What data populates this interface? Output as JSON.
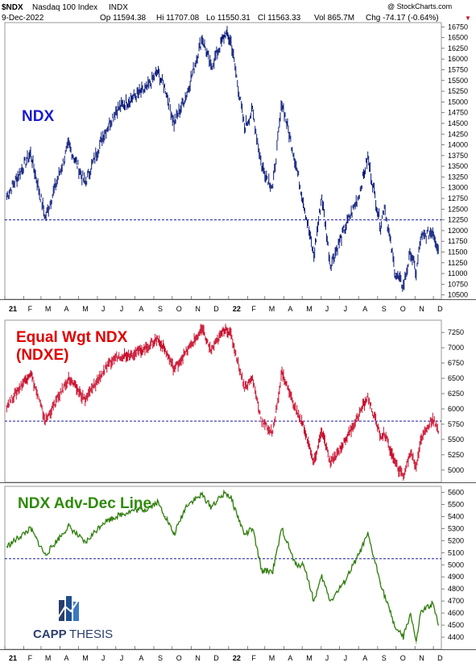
{
  "header": {
    "symbol": "$NDX",
    "name": "Nasdaq 100 Index",
    "exchange": "INDX",
    "date": "9-Dec-2022",
    "op": "Op 11594.38",
    "hi": "Hi 11707.08",
    "lo": "Lo 11550.31",
    "cl": "Cl 11563.33",
    "vol": "Vol 865.7M",
    "chg": "Chg -74.17 (-0.64%)",
    "watermark": "@ StockCharts.com",
    "down_arrow": "▼"
  },
  "logo": {
    "part1": "CAPP",
    "part2": "THESIS"
  },
  "colors": {
    "ndx": "#0a1a7a",
    "ndxe": "#c8102e",
    "adline": "#2e7d0a",
    "dashed": "#1a1aa6",
    "title_ndx": "#1a1ad0",
    "title_ndxe": "#e00000",
    "title_ad": "#2e8b0a",
    "logo_text": "#2a3e6e",
    "logo_icon": "#1f4e91"
  },
  "x_axis": {
    "months": [
      "21",
      "F",
      "M",
      "A",
      "M",
      "J",
      "J",
      "A",
      "S",
      "O",
      "N",
      "D",
      "22",
      "F",
      "M",
      "A",
      "M",
      "J",
      "J",
      "A",
      "S",
      "O",
      "N",
      "D"
    ],
    "bold_labels": [
      "21",
      "22"
    ]
  },
  "chart_data": [
    {
      "type": "line",
      "title": "NDX",
      "ylim": [
        10400,
        16850
      ],
      "y_ticks": [
        10500,
        10750,
        11000,
        11250,
        11500,
        11750,
        12000,
        12250,
        12500,
        12750,
        13000,
        13250,
        13500,
        13750,
        14000,
        14250,
        14500,
        14750,
        15000,
        15250,
        15500,
        15750,
        16000,
        16250,
        16500,
        16750
      ],
      "reference_line": 12250,
      "x": [
        "2021-01-04",
        "2021-02-12",
        "2021-03-08",
        "2021-04-15",
        "2021-05-12",
        "2021-06-10",
        "2021-07-01",
        "2021-07-28",
        "2021-08-20",
        "2021-09-07",
        "2021-09-20",
        "2021-10-04",
        "2021-10-25",
        "2021-11-19",
        "2021-12-03",
        "2021-12-27",
        "2022-01-05",
        "2022-01-27",
        "2022-02-09",
        "2022-02-24",
        "2022-03-14",
        "2022-03-29",
        "2022-04-20",
        "2022-05-04",
        "2022-05-20",
        "2022-06-02",
        "2022-06-16",
        "2022-07-08",
        "2022-08-01",
        "2022-08-16",
        "2022-09-06",
        "2022-09-12",
        "2022-09-30",
        "2022-10-13",
        "2022-10-25",
        "2022-11-03",
        "2022-11-10",
        "2022-11-30",
        "2022-12-09"
      ],
      "series": [
        {
          "values": [
            12800,
            13800,
            12300,
            14000,
            13100,
            14200,
            14800,
            15100,
            15300,
            15700,
            15300,
            14500,
            15200,
            16500,
            15800,
            16600,
            16400,
            14400,
            14800,
            13500,
            13000,
            15000,
            13600,
            12600,
            11400,
            12800,
            11200,
            12000,
            12800,
            13700,
            12100,
            12600,
            11000,
            10700,
            11500,
            11000,
            11800,
            12000,
            11563
          ]
        }
      ]
    },
    {
      "type": "line",
      "title": "Equal Wgt NDX (NDXE)",
      "ylim": [
        4800,
        7450
      ],
      "y_ticks": [
        5000,
        5250,
        5500,
        5750,
        6000,
        6250,
        6500,
        6750,
        7000,
        7250
      ],
      "reference_line": 5800,
      "x": [
        "2021-01-04",
        "2021-02-12",
        "2021-03-08",
        "2021-04-15",
        "2021-05-12",
        "2021-06-10",
        "2021-07-01",
        "2021-07-28",
        "2021-08-20",
        "2021-09-07",
        "2021-09-20",
        "2021-10-04",
        "2021-10-25",
        "2021-11-19",
        "2021-12-03",
        "2021-12-27",
        "2022-01-05",
        "2022-01-27",
        "2022-02-09",
        "2022-02-24",
        "2022-03-14",
        "2022-03-29",
        "2022-04-20",
        "2022-05-04",
        "2022-05-20",
        "2022-06-02",
        "2022-06-16",
        "2022-07-08",
        "2022-08-01",
        "2022-08-16",
        "2022-09-06",
        "2022-09-12",
        "2022-09-30",
        "2022-10-13",
        "2022-10-25",
        "2022-11-03",
        "2022-11-10",
        "2022-11-30",
        "2022-12-09"
      ],
      "series": [
        {
          "values": [
            6050,
            6600,
            5800,
            6500,
            6150,
            6600,
            6850,
            6900,
            7000,
            7150,
            6950,
            6650,
            6950,
            7300,
            6950,
            7330,
            7200,
            6350,
            6500,
            5800,
            5600,
            6600,
            6000,
            5700,
            5100,
            5650,
            5100,
            5450,
            5900,
            6200,
            5550,
            5600,
            5100,
            4900,
            5300,
            5050,
            5500,
            5850,
            5620
          ]
        }
      ]
    },
    {
      "type": "line",
      "title": "NDX Adv-Dec Line",
      "ylim": [
        4300,
        5650
      ],
      "y_ticks": [
        4400,
        4500,
        4600,
        4700,
        4800,
        4900,
        5000,
        5100,
        5200,
        5300,
        5400,
        5500,
        5600
      ],
      "reference_line": 5050,
      "x": [
        "2021-01-04",
        "2021-02-12",
        "2021-03-08",
        "2021-04-15",
        "2021-05-12",
        "2021-06-10",
        "2021-07-01",
        "2021-07-28",
        "2021-08-20",
        "2021-09-07",
        "2021-09-20",
        "2021-10-04",
        "2021-10-25",
        "2021-11-19",
        "2021-12-03",
        "2021-12-27",
        "2022-01-05",
        "2022-01-27",
        "2022-02-09",
        "2022-02-24",
        "2022-03-14",
        "2022-03-29",
        "2022-04-20",
        "2022-05-04",
        "2022-05-20",
        "2022-06-02",
        "2022-06-16",
        "2022-07-08",
        "2022-08-01",
        "2022-08-16",
        "2022-09-06",
        "2022-09-12",
        "2022-09-30",
        "2022-10-13",
        "2022-10-25",
        "2022-11-03",
        "2022-11-10",
        "2022-11-30",
        "2022-12-09"
      ],
      "series": [
        {
          "values": [
            5150,
            5300,
            5080,
            5320,
            5180,
            5350,
            5400,
            5450,
            5460,
            5520,
            5400,
            5250,
            5500,
            5580,
            5480,
            5600,
            5550,
            5250,
            5300,
            4950,
            4950,
            5300,
            5000,
            5000,
            4700,
            4900,
            4700,
            4850,
            5080,
            5250,
            4850,
            4750,
            4480,
            4400,
            4600,
            4350,
            4600,
            4680,
            4500
          ]
        }
      ]
    }
  ]
}
